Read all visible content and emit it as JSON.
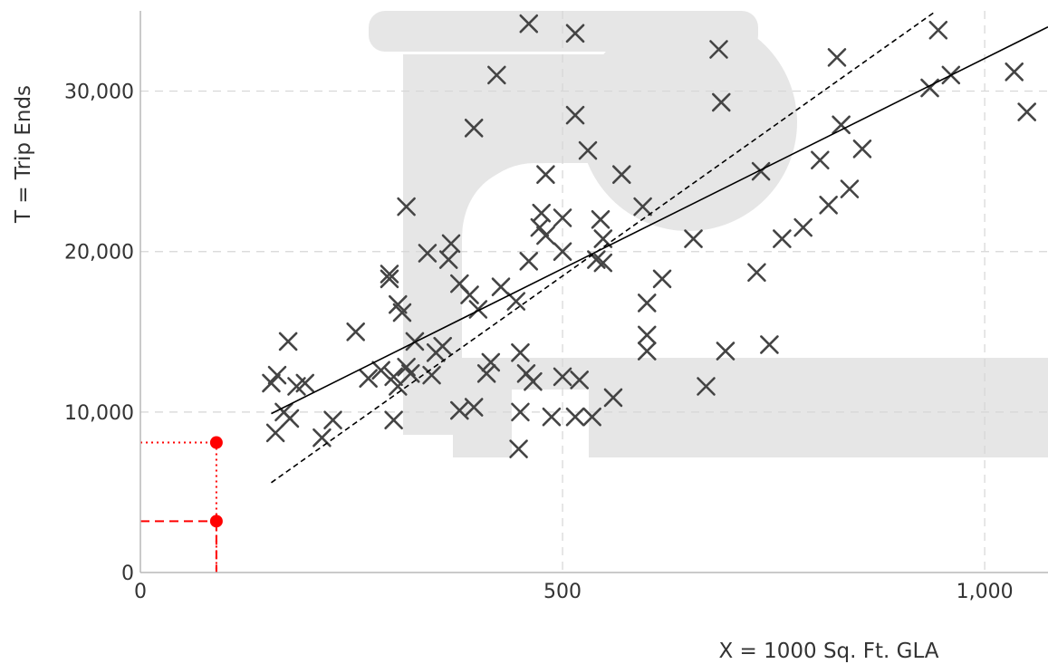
{
  "chart_data": {
    "type": "scatter",
    "xlabel": "X = 1000 Sq. Ft. GLA",
    "ylabel": "T = Trip Ends",
    "xlim": [
      0,
      1075
    ],
    "ylim": [
      0,
      35000
    ],
    "x_ticks": [
      {
        "value": 0,
        "label": "0"
      },
      {
        "value": 500,
        "label": "500"
      },
      {
        "value": 1000,
        "label": "1,000"
      }
    ],
    "y_ticks": [
      {
        "value": 0,
        "label": "0"
      },
      {
        "value": 10000,
        "label": "10,000"
      },
      {
        "value": 20000,
        "label": "20,000"
      },
      {
        "value": 30000,
        "label": "30,000"
      }
    ],
    "grid": true,
    "series": [
      {
        "marker": "x",
        "points": [
          [
            155,
            11800
          ],
          [
            162,
            12300
          ],
          [
            160,
            8700
          ],
          [
            170,
            10000
          ],
          [
            175,
            14400
          ],
          [
            177,
            9600
          ],
          [
            185,
            11600
          ],
          [
            195,
            11800
          ],
          [
            215,
            8400
          ],
          [
            228,
            9500
          ],
          [
            255,
            15000
          ],
          [
            270,
            12100
          ],
          [
            285,
            12600
          ],
          [
            295,
            18600
          ],
          [
            295,
            18300
          ],
          [
            300,
            12200
          ],
          [
            300,
            9500
          ],
          [
            305,
            11600
          ],
          [
            305,
            16700
          ],
          [
            310,
            16200
          ],
          [
            315,
            22800
          ],
          [
            315,
            12800
          ],
          [
            320,
            12400
          ],
          [
            325,
            14400
          ],
          [
            340,
            19900
          ],
          [
            345,
            12300
          ],
          [
            350,
            13700
          ],
          [
            358,
            14100
          ],
          [
            368,
            20500
          ],
          [
            365,
            19500
          ],
          [
            378,
            10100
          ],
          [
            378,
            18000
          ],
          [
            390,
            17300
          ],
          [
            395,
            10300
          ],
          [
            395,
            27700
          ],
          [
            400,
            16400
          ],
          [
            410,
            12400
          ],
          [
            415,
            13100
          ],
          [
            422,
            31000
          ],
          [
            427,
            17800
          ],
          [
            445,
            16900
          ],
          [
            448,
            7700
          ],
          [
            450,
            10000
          ],
          [
            450,
            13700
          ],
          [
            457,
            12400
          ],
          [
            460,
            19400
          ],
          [
            460,
            34200
          ],
          [
            465,
            11900
          ],
          [
            473,
            21500
          ],
          [
            475,
            22400
          ],
          [
            480,
            24800
          ],
          [
            480,
            21000
          ],
          [
            487,
            9700
          ],
          [
            500,
            22100
          ],
          [
            500,
            12200
          ],
          [
            500,
            20000
          ],
          [
            515,
            9700
          ],
          [
            515,
            28500
          ],
          [
            515,
            33600
          ],
          [
            520,
            12000
          ],
          [
            530,
            26300
          ],
          [
            535,
            9700
          ],
          [
            540,
            19500
          ],
          [
            545,
            22000
          ],
          [
            548,
            20800
          ],
          [
            548,
            19300
          ],
          [
            560,
            10900
          ],
          [
            570,
            24800
          ],
          [
            595,
            22800
          ],
          [
            600,
            16800
          ],
          [
            600,
            14800
          ],
          [
            600,
            13800
          ],
          [
            618,
            18300
          ],
          [
            655,
            20800
          ],
          [
            670,
            11600
          ],
          [
            685,
            32600
          ],
          [
            688,
            29300
          ],
          [
            693,
            13800
          ],
          [
            730,
            18700
          ],
          [
            735,
            25000
          ],
          [
            745,
            14200
          ],
          [
            760,
            20800
          ],
          [
            785,
            21500
          ],
          [
            805,
            25700
          ],
          [
            815,
            22900
          ],
          [
            825,
            32100
          ],
          [
            830,
            27900
          ],
          [
            840,
            23900
          ],
          [
            855,
            26400
          ],
          [
            935,
            30200
          ],
          [
            945,
            33800
          ],
          [
            960,
            31000
          ],
          [
            1035,
            31200
          ],
          [
            1050,
            28700
          ]
        ]
      }
    ],
    "lines": [
      {
        "style": "solid",
        "from": [
          155,
          9900
        ],
        "to": [
          1075,
          34000
        ]
      },
      {
        "style": "dashed",
        "from": [
          155,
          5600
        ],
        "to": [
          940,
          34900
        ]
      }
    ],
    "markers": [
      {
        "x": 90,
        "y": 8100,
        "style": "dotted",
        "color": "#ff0000"
      },
      {
        "x": 90,
        "y": 3200,
        "style": "dashed",
        "color": "#ff0000"
      }
    ],
    "colors": {
      "points": "#444444",
      "lines": "#000000",
      "grid": "#d6d6d6",
      "axis": "#b8b8b8",
      "watermark": "#e6e6e6",
      "highlight": "#ff0000"
    }
  }
}
